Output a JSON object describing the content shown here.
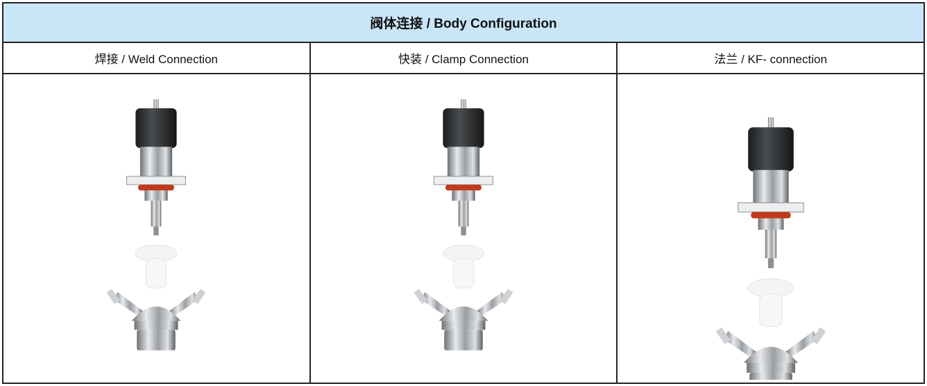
{
  "table": {
    "title": "阀体连接 / Body Configuration",
    "columns": [
      "焊接 / Weld Connection",
      "快装 / Clamp Connection",
      "法兰 / KF- connection"
    ]
  }
}
